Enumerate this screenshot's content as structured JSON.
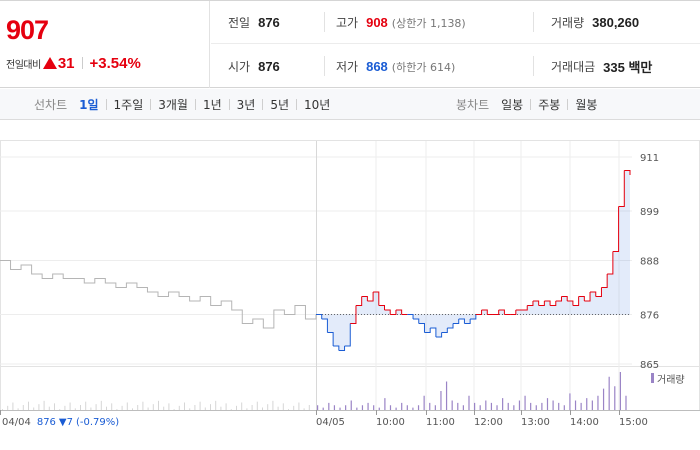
{
  "summary": {
    "current_price": "907",
    "change_label": "전일대비",
    "change_amount": "31",
    "change_rate": "+3.54%",
    "stats": {
      "prev_close": {
        "label": "전일",
        "value": "876"
      },
      "high": {
        "label": "고가",
        "value": "908",
        "sub": "(상한가 1,138)"
      },
      "volume": {
        "label": "거래량",
        "value": "380,260"
      },
      "open": {
        "label": "시가",
        "value": "876"
      },
      "low": {
        "label": "저가",
        "value": "868",
        "sub": "(하한가 614)"
      },
      "trade_value": {
        "label": "거래대금",
        "value": "335 백만"
      }
    }
  },
  "tabs": {
    "line_title": "선차트",
    "line": [
      "1일",
      "1주일",
      "3개월",
      "1년",
      "3년",
      "5년",
      "10년"
    ],
    "line_active": 0,
    "candle_title": "봉차트",
    "candle": [
      "일봉",
      "주봉",
      "월봉"
    ]
  },
  "info": {
    "date": "04/04",
    "price": "876",
    "change": "▼7",
    "rate": "(-0.79%)"
  },
  "volume_legend": "거래량",
  "colors": {
    "up": "#e5000f",
    "down": "#1a5cd4",
    "prev_day": "#b5b5b5",
    "volume": "#9a84c6"
  },
  "chart_data": {
    "type": "line",
    "y_ticks": [
      911,
      899,
      888,
      876,
      865
    ],
    "ylim": [
      865,
      911
    ],
    "base_price": 876,
    "x_tick_labels": [
      "04/04",
      "04/05",
      "10:00",
      "11:00",
      "12:00",
      "13:00",
      "14:00",
      "15:00"
    ],
    "previous_day": [
      888,
      886,
      887,
      885,
      884,
      885,
      884,
      884,
      883,
      884,
      883,
      882,
      883,
      882,
      881,
      880,
      881,
      880,
      879,
      880,
      878,
      879,
      877,
      874,
      875,
      873,
      877,
      876,
      878,
      875,
      876
    ],
    "today": [
      876,
      875,
      872,
      869,
      868,
      869,
      874,
      878,
      880,
      879,
      881,
      878,
      877,
      876,
      877,
      876,
      876,
      875,
      874,
      872,
      873,
      871,
      872,
      873,
      874,
      875,
      874,
      875,
      876,
      877,
      876,
      876,
      877,
      876,
      876,
      877,
      877,
      878,
      879,
      878,
      879,
      878,
      879,
      880,
      879,
      878,
      880,
      879,
      881,
      880,
      882,
      885,
      890,
      900,
      908,
      907
    ],
    "volume": [
      2,
      1,
      3,
      2,
      1,
      2,
      4,
      1,
      2,
      3,
      2,
      1,
      5,
      2,
      1,
      3,
      2,
      1,
      2,
      6,
      3,
      2,
      8,
      12,
      4,
      3,
      2,
      6,
      3,
      2,
      4,
      3,
      2,
      5,
      3,
      2,
      4,
      6,
      3,
      2,
      3,
      5,
      4,
      3,
      2,
      7,
      4,
      3,
      5,
      4,
      6,
      9,
      14,
      10,
      16,
      6
    ]
  }
}
